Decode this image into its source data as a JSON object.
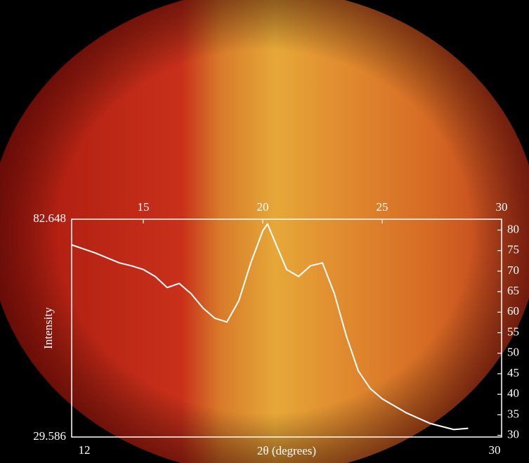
{
  "chart_data": {
    "type": "line",
    "x_label": "2θ (degrees)",
    "y_label": "Intensity",
    "x": [
      12,
      13,
      14,
      14.5,
      15,
      15.5,
      16,
      16.5,
      17,
      17.5,
      18,
      18.5,
      19,
      19.5,
      20,
      20.2,
      20.5,
      21,
      21.5,
      22,
      22.5,
      23,
      23.5,
      24,
      24.5,
      25,
      26,
      27,
      28,
      28.6
    ],
    "values": [
      76.4,
      74.4,
      72,
      71.3,
      70.4,
      68.7,
      66,
      67,
      64.5,
      61,
      58.5,
      57.6,
      62.8,
      72,
      79.8,
      81.5,
      77.3,
      70.4,
      68.7,
      71.3,
      72,
      64.5,
      54.2,
      45.7,
      41.4,
      38.9,
      35.5,
      32.9,
      31.4,
      31.7
    ],
    "color": "#ffffff",
    "xlim": [
      12,
      30
    ],
    "xticks": [
      15,
      20,
      25,
      30
    ],
    "ylim": [
      29.586,
      82.648
    ],
    "yticks": [
      30,
      35,
      40,
      45,
      50,
      55,
      60,
      65,
      70,
      75,
      80
    ],
    "grid": false
  }
}
